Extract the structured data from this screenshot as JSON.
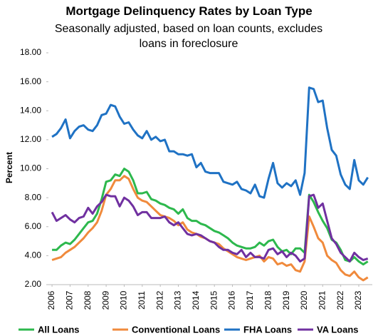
{
  "chart_data": {
    "type": "line",
    "title": "Mortgage Delinquency Rates by Loan Type",
    "subtitle": "Seasonally adjusted, based on loan counts, excludes loans in foreclosure",
    "y_label": "Percent",
    "x": [
      2006,
      2006.25,
      2006.5,
      2006.75,
      2007,
      2007.25,
      2007.5,
      2007.75,
      2008,
      2008.25,
      2008.5,
      2008.75,
      2009,
      2009.25,
      2009.5,
      2009.75,
      2010,
      2010.25,
      2010.5,
      2010.75,
      2011,
      2011.25,
      2011.5,
      2011.75,
      2012,
      2012.25,
      2012.5,
      2012.75,
      2013,
      2013.25,
      2013.5,
      2013.75,
      2014,
      2014.25,
      2014.5,
      2014.75,
      2015,
      2015.25,
      2015.5,
      2015.75,
      2016,
      2016.25,
      2016.5,
      2016.75,
      2017,
      2017.25,
      2017.5,
      2017.75,
      2018,
      2018.25,
      2018.5,
      2018.75,
      2019,
      2019.25,
      2019.5,
      2019.75,
      2020,
      2020.25,
      2020.5,
      2020.75,
      2021,
      2021.25,
      2021.5,
      2021.75,
      2022,
      2022.25,
      2022.5,
      2022.75,
      2023,
      2023.25,
      2023.5
    ],
    "xlim": [
      2005.8,
      2023.75
    ],
    "xticks": [
      2006,
      2007,
      2008,
      2009,
      2010,
      2011,
      2012,
      2013,
      2014,
      2015,
      2016,
      2017,
      2018,
      2019,
      2020,
      2021,
      2022,
      2023
    ],
    "ylim": [
      2,
      18
    ],
    "yticks": [
      {
        "value": 2,
        "label": "2.00"
      },
      {
        "value": 4,
        "label": "4.00"
      },
      {
        "value": 6,
        "label": "6.00"
      },
      {
        "value": 8,
        "label": "8.00"
      },
      {
        "value": 10,
        "label": "10.00"
      },
      {
        "value": 12,
        "label": "12.00"
      },
      {
        "value": 14,
        "label": "14.00"
      },
      {
        "value": 16,
        "label": "16.00"
      },
      {
        "value": 18,
        "label": "18.00"
      }
    ],
    "grid": false,
    "legend": "bottom",
    "series": [
      {
        "name": "All Loans",
        "color": "#2db84d",
        "values": [
          4.4,
          4.4,
          4.7,
          4.9,
          4.8,
          5.1,
          5.5,
          5.9,
          6.3,
          6.4,
          6.9,
          7.9,
          9.1,
          9.2,
          9.6,
          9.5,
          10.0,
          9.8,
          9.2,
          8.3,
          8.3,
          8.4,
          7.9,
          7.8,
          7.6,
          7.5,
          7.3,
          7.2,
          6.9,
          7.2,
          6.6,
          6.4,
          6.4,
          6.2,
          6.1,
          5.9,
          5.7,
          5.6,
          5.4,
          5.2,
          4.9,
          4.7,
          4.6,
          4.5,
          4.5,
          4.6,
          4.9,
          4.7,
          5.0,
          5.1,
          4.6,
          4.3,
          4.4,
          4.1,
          4.5,
          4.5,
          4.2,
          8.2,
          7.7,
          7.0,
          6.4,
          5.9,
          5.1,
          4.9,
          4.4,
          3.7,
          3.6,
          3.9,
          3.6,
          3.4,
          3.6
        ]
      },
      {
        "name": "Conventional Loans",
        "color": "#f08a3c",
        "values": [
          3.7,
          3.8,
          3.9,
          4.2,
          4.4,
          4.6,
          4.9,
          5.2,
          5.6,
          5.9,
          6.3,
          7.1,
          8.2,
          8.6,
          9.2,
          9.2,
          9.5,
          9.3,
          8.6,
          8.0,
          7.8,
          7.7,
          7.4,
          7.1,
          6.8,
          6.7,
          6.6,
          6.4,
          6.1,
          6.3,
          5.8,
          5.6,
          5.5,
          5.3,
          5.2,
          5.0,
          4.9,
          4.8,
          4.5,
          4.3,
          4.1,
          3.9,
          3.8,
          3.7,
          3.8,
          3.9,
          4.0,
          3.6,
          3.9,
          3.8,
          3.4,
          3.5,
          3.3,
          3.4,
          3.0,
          2.9,
          3.6,
          6.7,
          6.0,
          5.2,
          4.9,
          4.0,
          3.7,
          3.5,
          3.0,
          2.7,
          2.6,
          2.9,
          2.5,
          2.3,
          2.5
        ]
      },
      {
        "name": "FHA Loans",
        "color": "#1f72c4",
        "values": [
          12.2,
          12.4,
          12.8,
          13.4,
          12.1,
          12.6,
          12.9,
          13.0,
          12.7,
          12.6,
          13.0,
          13.7,
          13.8,
          14.4,
          14.3,
          13.6,
          13.1,
          13.2,
          12.7,
          12.3,
          12.1,
          12.6,
          12.0,
          12.2,
          11.9,
          12.0,
          11.2,
          11.2,
          11.0,
          11.0,
          10.9,
          11.0,
          10.1,
          10.4,
          9.8,
          9.7,
          9.7,
          9.7,
          9.1,
          9.0,
          8.9,
          9.1,
          8.6,
          8.5,
          8.3,
          8.9,
          8.1,
          8.0,
          9.3,
          10.4,
          9.0,
          8.7,
          9.0,
          8.8,
          9.2,
          8.2,
          9.7,
          15.6,
          15.5,
          14.6,
          14.7,
          12.8,
          11.3,
          10.9,
          9.6,
          8.9,
          8.6,
          10.6,
          9.2,
          8.9,
          9.4
        ]
      },
      {
        "name": "VA Loans",
        "color": "#7030a0",
        "values": [
          7.0,
          6.4,
          6.6,
          6.8,
          6.5,
          6.3,
          6.6,
          6.7,
          7.3,
          6.9,
          7.4,
          7.7,
          8.2,
          8.1,
          8.1,
          7.4,
          8.0,
          7.8,
          7.4,
          6.8,
          7.0,
          7.0,
          6.6,
          6.6,
          6.6,
          6.7,
          6.3,
          6.1,
          6.3,
          5.9,
          5.5,
          5.4,
          5.5,
          5.4,
          5.2,
          5.0,
          4.9,
          4.6,
          4.4,
          4.4,
          4.2,
          4.1,
          4.4,
          3.9,
          4.2,
          3.9,
          3.9,
          3.8,
          4.4,
          4.5,
          4.1,
          4.3,
          3.9,
          4.2,
          4.0,
          3.6,
          3.8,
          8.1,
          8.2,
          7.3,
          7.6,
          6.4,
          5.2,
          4.8,
          4.2,
          3.9,
          3.6,
          4.2,
          3.9,
          3.7,
          3.8
        ]
      }
    ]
  }
}
